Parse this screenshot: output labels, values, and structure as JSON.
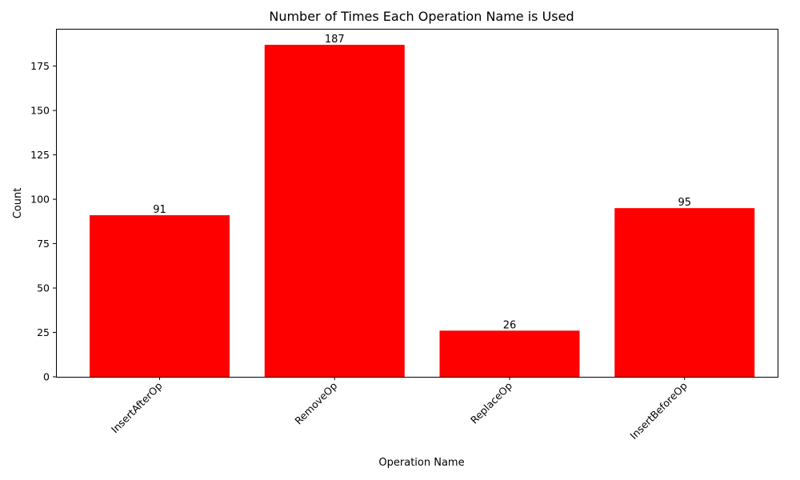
{
  "chart_data": {
    "type": "bar",
    "title": "Number of Times Each Operation Name is Used",
    "xlabel": "Operation Name",
    "ylabel": "Count",
    "categories": [
      "InsertAfterOp",
      "RemoveOp",
      "ReplaceOp",
      "InsertBeforeOp"
    ],
    "values": [
      91,
      187,
      26,
      95
    ],
    "ylim": [
      0,
      196
    ],
    "yticks": [
      0,
      25,
      50,
      75,
      100,
      125,
      150,
      175
    ],
    "bar_color": "#ff0000",
    "grid": false,
    "legend": "none"
  }
}
